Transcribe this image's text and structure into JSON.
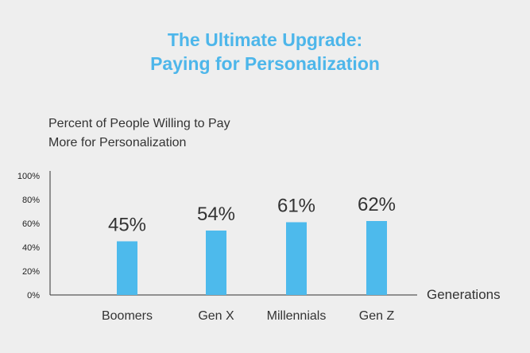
{
  "colors": {
    "title": "#4db6ea",
    "bar": "#4dbaec",
    "axis": "#333333",
    "text": "#222222"
  },
  "chart_data": {
    "type": "bar",
    "title": "The Ultimate Upgrade:",
    "subtitle": "Paying for Personalization",
    "ylabel_line1": "Percent of People Willing to Pay",
    "ylabel_line2": "More for Personalization",
    "xlabel": "Generations",
    "categories": [
      "Boomers",
      "Gen X",
      "Millennials",
      "Gen Z"
    ],
    "values": [
      45,
      54,
      61,
      62
    ],
    "data_labels": [
      "45%",
      "54%",
      "61%",
      "62%"
    ],
    "ylim": [
      0,
      100
    ],
    "yticks": [
      "0%",
      "20%",
      "40%",
      "60%",
      "80%",
      "100%"
    ],
    "grid": false
  }
}
